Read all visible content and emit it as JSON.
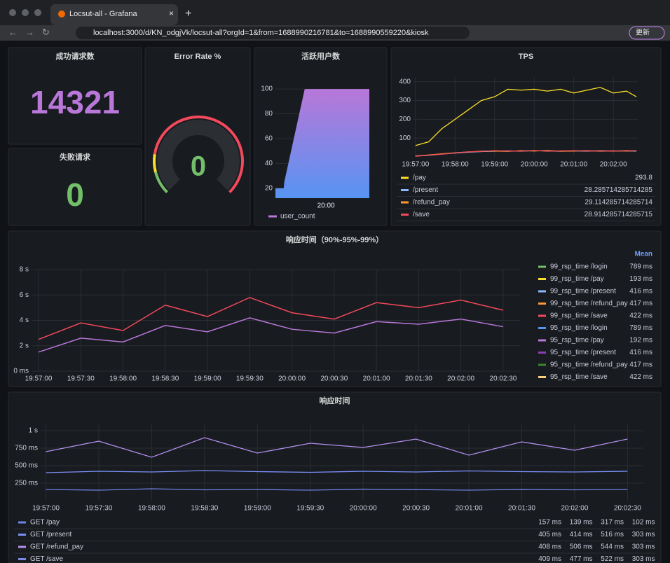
{
  "browser": {
    "tab_title": "Locsut-all - Grafana",
    "url": "localhost:3000/d/KN_odgjVk/locsut-all?orgId=1&from=1688990216781&to=1688990559220&kiosk",
    "update_button": "更新"
  },
  "panels": {
    "success": {
      "title": "成功请求数",
      "value": 14321,
      "color": "#b877d9"
    },
    "failed": {
      "title": "失败请求",
      "value": 0,
      "color": "#73bf69"
    },
    "error_rate": {
      "title": "Error Rate %",
      "value": 0,
      "color": "#73bf69"
    },
    "active_users": {
      "title": "活跃用户数",
      "xlim": [
        "19:56:57",
        "20:02:37"
      ],
      "xticks": [
        "20:00"
      ],
      "ylim": [
        12,
        104
      ],
      "yticks": [
        20,
        40,
        60,
        80,
        100
      ],
      "series": [
        {
          "name": "user_count",
          "color": "#b877d9",
          "x": [
            "19:56:57",
            "19:57:27",
            "19:57:29",
            "19:58:43",
            "20:02:37"
          ],
          "values": [
            20,
            20,
            25,
            100,
            100
          ]
        }
      ]
    },
    "tps": {
      "title": "TPS",
      "xlim": [
        "19:56:57",
        "20:02:37"
      ],
      "xticks": [
        "19:57:00",
        "19:58:00",
        "19:59:00",
        "20:00:00",
        "20:01:00",
        "20:02:00"
      ],
      "ylim": [
        0,
        425
      ],
      "yticks": [
        100,
        200,
        300,
        400
      ],
      "x": [
        "19:57:00",
        "19:57:20",
        "19:57:40",
        "19:58:00",
        "19:58:20",
        "19:58:40",
        "19:59:00",
        "19:59:20",
        "19:59:40",
        "20:00:00",
        "20:00:20",
        "20:00:40",
        "20:01:00",
        "20:01:20",
        "20:01:40",
        "20:02:00",
        "20:02:20",
        "20:02:35"
      ],
      "series": [
        {
          "name": "/pay",
          "color": "#fade2a",
          "legend": 293.8,
          "values": [
            60,
            80,
            150,
            200,
            250,
            300,
            320,
            360,
            355,
            360,
            350,
            360,
            340,
            355,
            370,
            340,
            350,
            320
          ]
        },
        {
          "name": "/present",
          "color": "#8ab8ff",
          "legend": 28.285714285714285,
          "values": [
            5,
            8,
            15,
            20,
            25,
            28,
            30,
            32,
            30,
            33,
            31,
            30,
            32,
            30,
            33,
            31,
            32,
            30
          ]
        },
        {
          "name": "/refund_pay",
          "color": "#ff9830",
          "legend": 29.114285714285714,
          "values": [
            4,
            10,
            16,
            22,
            26,
            30,
            31,
            29,
            33,
            31,
            34,
            30,
            31,
            33,
            30,
            32,
            31,
            33
          ]
        },
        {
          "name": "/save",
          "color": "#f2495c",
          "legend": 28.914285714285715,
          "values": [
            3,
            9,
            14,
            21,
            27,
            29,
            33,
            31,
            30,
            34,
            30,
            32,
            33,
            31,
            32,
            30,
            34,
            31
          ]
        }
      ]
    },
    "rsp_pct": {
      "title": "响应时间（90%-95%-99%）",
      "legend_header": "Mean",
      "xlim": [
        "19:56:55",
        "20:02:42"
      ],
      "ylim": [
        0,
        8000
      ],
      "xticks": [
        "19:57:00",
        "19:57:30",
        "19:58:00",
        "19:58:30",
        "19:59:00",
        "19:59:30",
        "20:00:00",
        "20:00:30",
        "20:01:00",
        "20:01:30",
        "20:02:00",
        "20:02:30"
      ],
      "yticks": [
        {
          "value": 0,
          "label": "0 ms"
        },
        {
          "value": 2000,
          "label": "2 s"
        },
        {
          "value": 4000,
          "label": "4 s"
        },
        {
          "value": 6000,
          "label": "6 s"
        },
        {
          "value": 8000,
          "label": "8 s"
        }
      ],
      "x": [
        "19:57:00",
        "19:57:30",
        "19:58:00",
        "19:58:30",
        "19:59:00",
        "19:59:30",
        "20:00:00",
        "20:00:30",
        "20:01:00",
        "20:01:30",
        "20:02:00",
        "20:02:30"
      ],
      "series": [
        {
          "name": "99_rsp_time /login",
          "color": "#73bf69",
          "mean": {
            "value": 789,
            "label": "789 ms"
          }
        },
        {
          "name": "99_rsp_time /pay",
          "color": "#fade2a",
          "mean": {
            "value": 193,
            "label": "193 ms"
          }
        },
        {
          "name": "99_rsp_time /present",
          "color": "#8ab8ff",
          "mean": {
            "value": 416,
            "label": "416 ms"
          }
        },
        {
          "name": "99_rsp_time /refund_pay",
          "color": "#ff9830",
          "mean": {
            "value": 417,
            "label": "417 ms"
          }
        },
        {
          "name": "99_rsp_time /save",
          "color": "#f2495c",
          "mean": {
            "value": 422,
            "label": "422 ms"
          },
          "values": [
            2500,
            3800,
            3200,
            5200,
            4300,
            5800,
            4600,
            4100,
            5400,
            5000,
            5600,
            4800
          ]
        },
        {
          "name": "95_rsp_time /login",
          "color": "#5794f2",
          "mean": {
            "value": 789,
            "label": "789 ms"
          }
        },
        {
          "name": "95_rsp_time /pay",
          "color": "#b877d9",
          "mean": {
            "value": 192,
            "label": "192 ms"
          },
          "values": [
            1500,
            2600,
            2300,
            3600,
            3100,
            4200,
            3300,
            3000,
            3900,
            3700,
            4100,
            3500
          ]
        },
        {
          "name": "95_rsp_time /present",
          "color": "#8f3bb8",
          "mean": {
            "value": 416,
            "label": "416 ms"
          }
        },
        {
          "name": "95_rsp_time /refund_pay",
          "color": "#37872d",
          "mean": {
            "value": 417,
            "label": "417 ms"
          }
        },
        {
          "name": "95_rsp_time /save",
          "color": "#ffcb7d",
          "mean": {
            "value": 422,
            "label": "422 ms"
          }
        }
      ]
    },
    "rsp": {
      "title": "响应时间",
      "xlim": [
        "19:56:57",
        "20:02:39"
      ],
      "ylim": [
        0,
        1100
      ],
      "xticks": [
        "19:57:00",
        "19:57:30",
        "19:58:00",
        "19:58:30",
        "19:59:00",
        "19:59:30",
        "20:00:00",
        "20:00:30",
        "20:01:00",
        "20:01:30",
        "20:02:00",
        "20:02:30"
      ],
      "yticks": [
        {
          "value": 250,
          "label": "250 ms"
        },
        {
          "value": 500,
          "label": "500 ms"
        },
        {
          "value": 750,
          "label": "750 ms"
        },
        {
          "value": 1000,
          "label": "1 s"
        }
      ],
      "x": [
        "19:57:00",
        "19:57:30",
        "19:58:00",
        "19:58:30",
        "19:59:00",
        "19:59:30",
        "20:00:00",
        "20:00:30",
        "20:01:00",
        "20:01:30",
        "20:02:00",
        "20:02:30"
      ],
      "series": [
        {
          "name": "GET /pay",
          "color": "#6e83e6",
          "stats": [
            {
              "value": 157,
              "label": "157 ms"
            },
            {
              "value": 139,
              "label": "139 ms"
            },
            {
              "value": 317,
              "label": "317 ms"
            },
            {
              "value": 102,
              "label": "102 ms"
            }
          ],
          "values": [
            160,
            150,
            170,
            155,
            160,
            150,
            165,
            158,
            150,
            162,
            155,
            160
          ]
        },
        {
          "name": "GET /present",
          "color": "#7b8ff7",
          "stats": [
            {
              "value": 405,
              "label": "405 ms"
            },
            {
              "value": 414,
              "label": "414 ms"
            },
            {
              "value": 516,
              "label": "516 ms"
            },
            {
              "value": 303,
              "label": "303 ms"
            }
          ],
          "values": [
            400,
            420,
            410,
            430,
            415,
            405,
            420,
            410,
            425,
            415,
            410,
            420
          ]
        },
        {
          "name": "GET /refund_pay",
          "color": "#b38ff0",
          "stats": [
            {
              "value": 408,
              "label": "408 ms"
            },
            {
              "value": 506,
              "label": "506 ms"
            },
            {
              "value": 544,
              "label": "544 ms"
            },
            {
              "value": 303,
              "label": "303 ms"
            }
          ],
          "values": [
            700,
            850,
            620,
            900,
            680,
            820,
            760,
            880,
            650,
            840,
            720,
            880
          ]
        },
        {
          "name": "GET /save",
          "color": "#7a88e8",
          "stats": [
            {
              "value": 409,
              "label": "409 ms"
            },
            {
              "value": 477,
              "label": "477 ms"
            },
            {
              "value": 522,
              "label": "522 ms"
            },
            {
              "value": 303,
              "label": "303 ms"
            }
          ]
        }
      ]
    }
  }
}
